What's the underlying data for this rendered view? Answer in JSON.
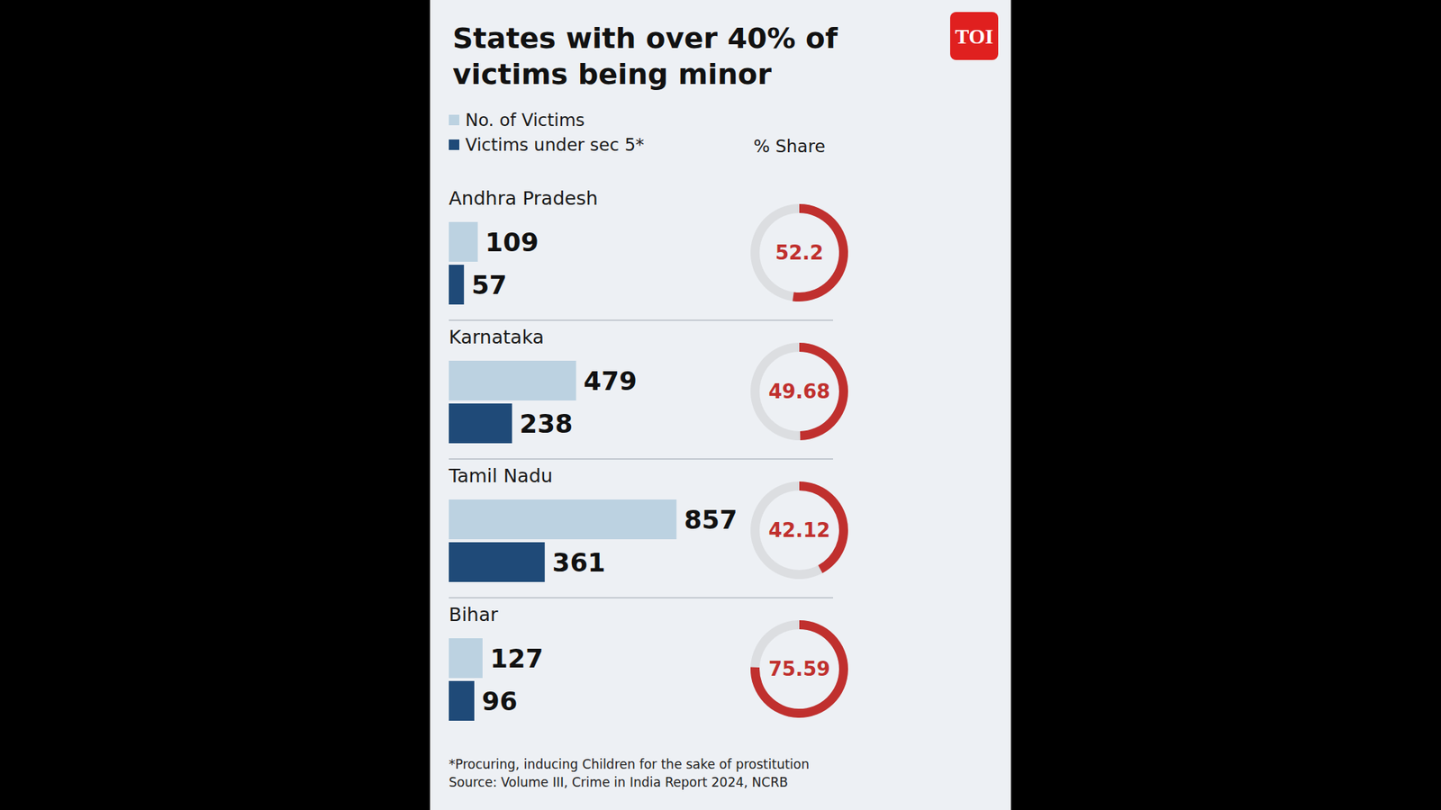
{
  "chart_data": {
    "type": "bar",
    "orientation": "horizontal",
    "title": "States with over 40% of victims being minor",
    "logo": "TOI",
    "share_label": "% Share",
    "categories": [
      "Andhra Pradesh",
      "Karnataka",
      "Tamil Nadu",
      "Bihar"
    ],
    "series": [
      {
        "name": "No. of Victims",
        "color": "#bcd2e1",
        "values": [
          109,
          479,
          857,
          127
        ]
      },
      {
        "name": "Victims under sec 5*",
        "color": "#1f4a78",
        "values": [
          57,
          238,
          361,
          96
        ]
      }
    ],
    "share": {
      "values": [
        52.2,
        49.68,
        42.12,
        75.59
      ],
      "lim": [
        0,
        100
      ],
      "color": "#c0302e"
    },
    "xlim": [
      0,
      1000
    ],
    "data_labels": true,
    "tick_labels": false,
    "footnote": "*Procuring, inducing Children for the sake of prostitution",
    "source": "Source: Volume III, Crime in India Report 2024, NCRB"
  }
}
